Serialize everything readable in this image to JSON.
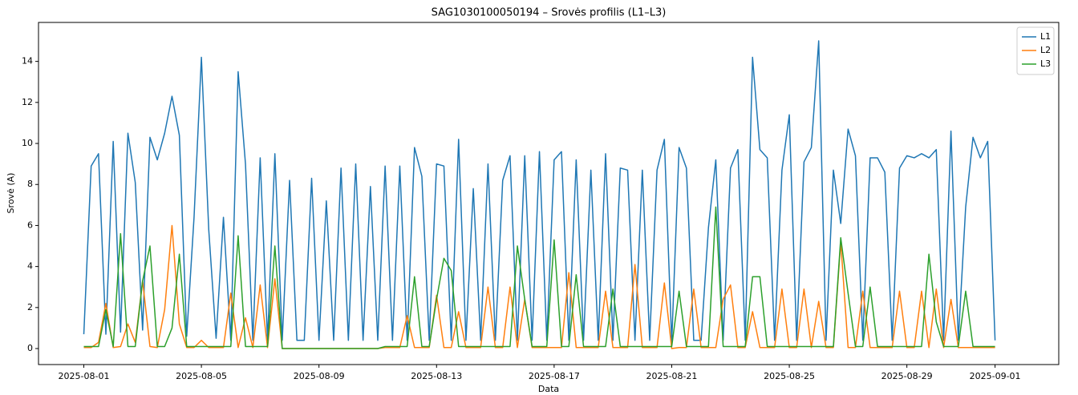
{
  "chart_data": {
    "type": "line",
    "title": "SAG1030100050194 – Srovės profilis (L1–L3)",
    "xlabel": "Data",
    "ylabel": "Srovė (A)",
    "x": [
      "2025-08-01 00:00",
      "2025-08-01 06:00",
      "2025-08-01 12:00",
      "2025-08-01 18:00",
      "2025-08-02 00:00",
      "2025-08-02 06:00",
      "2025-08-02 12:00",
      "2025-08-02 18:00",
      "2025-08-03 00:00",
      "2025-08-03 06:00",
      "2025-08-03 12:00",
      "2025-08-03 18:00",
      "2025-08-04 00:00",
      "2025-08-04 06:00",
      "2025-08-04 12:00",
      "2025-08-04 18:00",
      "2025-08-05 00:00",
      "2025-08-05 06:00",
      "2025-08-05 12:00",
      "2025-08-05 18:00",
      "2025-08-06 00:00",
      "2025-08-06 06:00",
      "2025-08-06 12:00",
      "2025-08-06 18:00",
      "2025-08-07 00:00",
      "2025-08-07 06:00",
      "2025-08-07 12:00",
      "2025-08-07 18:00",
      "2025-08-08 00:00",
      "2025-08-08 06:00",
      "2025-08-08 12:00",
      "2025-08-08 18:00",
      "2025-08-09 00:00",
      "2025-08-09 06:00",
      "2025-08-09 12:00",
      "2025-08-09 18:00",
      "2025-08-10 00:00",
      "2025-08-10 06:00",
      "2025-08-10 12:00",
      "2025-08-10 18:00",
      "2025-08-11 00:00",
      "2025-08-11 06:00",
      "2025-08-11 12:00",
      "2025-08-11 18:00",
      "2025-08-12 00:00",
      "2025-08-12 06:00",
      "2025-08-12 12:00",
      "2025-08-12 18:00",
      "2025-08-13 00:00",
      "2025-08-13 06:00",
      "2025-08-13 12:00",
      "2025-08-13 18:00",
      "2025-08-14 00:00",
      "2025-08-14 06:00",
      "2025-08-14 12:00",
      "2025-08-14 18:00",
      "2025-08-15 00:00",
      "2025-08-15 06:00",
      "2025-08-15 12:00",
      "2025-08-15 18:00",
      "2025-08-16 00:00",
      "2025-08-16 06:00",
      "2025-08-16 12:00",
      "2025-08-16 18:00",
      "2025-08-17 00:00",
      "2025-08-17 06:00",
      "2025-08-17 12:00",
      "2025-08-17 18:00",
      "2025-08-18 00:00",
      "2025-08-18 06:00",
      "2025-08-18 12:00",
      "2025-08-18 18:00",
      "2025-08-19 00:00",
      "2025-08-19 06:00",
      "2025-08-19 12:00",
      "2025-08-19 18:00",
      "2025-08-20 00:00",
      "2025-08-20 06:00",
      "2025-08-20 12:00",
      "2025-08-20 18:00",
      "2025-08-21 00:00",
      "2025-08-21 06:00",
      "2025-08-21 12:00",
      "2025-08-21 18:00",
      "2025-08-22 00:00",
      "2025-08-22 06:00",
      "2025-08-22 12:00",
      "2025-08-22 18:00",
      "2025-08-23 00:00",
      "2025-08-23 06:00",
      "2025-08-23 12:00",
      "2025-08-23 18:00",
      "2025-08-24 00:00",
      "2025-08-24 06:00",
      "2025-08-24 12:00",
      "2025-08-24 18:00",
      "2025-08-25 00:00",
      "2025-08-25 06:00",
      "2025-08-25 12:00",
      "2025-08-25 18:00",
      "2025-08-26 00:00",
      "2025-08-26 06:00",
      "2025-08-26 12:00",
      "2025-08-26 18:00",
      "2025-08-27 00:00",
      "2025-08-27 06:00",
      "2025-08-27 12:00",
      "2025-08-27 18:00",
      "2025-08-28 00:00",
      "2025-08-28 06:00",
      "2025-08-28 12:00",
      "2025-08-28 18:00",
      "2025-08-29 00:00",
      "2025-08-29 06:00",
      "2025-08-29 12:00",
      "2025-08-29 18:00",
      "2025-08-30 00:00",
      "2025-08-30 06:00",
      "2025-08-30 12:00",
      "2025-08-30 18:00",
      "2025-08-31 00:00",
      "2025-08-31 06:00",
      "2025-08-31 12:00",
      "2025-08-31 18:00",
      "2025-09-01 00:00"
    ],
    "series": [
      {
        "name": "L1",
        "color": "#1f77b4",
        "values": [
          0.7,
          8.9,
          9.5,
          0.7,
          10.1,
          0.8,
          10.5,
          8.1,
          0.9,
          10.3,
          9.2,
          10.5,
          12.3,
          10.4,
          0.6,
          6.4,
          14.2,
          5.8,
          0.5,
          6.4,
          0.4,
          13.5,
          9.0,
          0.4,
          9.3,
          0.4,
          9.5,
          0.4,
          8.2,
          0.4,
          0.4,
          8.3,
          0.4,
          7.2,
          0.4,
          8.8,
          0.4,
          9.0,
          0.4,
          7.9,
          0.4,
          8.9,
          0.4,
          8.9,
          0.4,
          9.8,
          8.4,
          0.4,
          9.0,
          8.9,
          0.4,
          10.2,
          0.4,
          7.8,
          0.4,
          9.0,
          0.4,
          8.2,
          9.4,
          0.4,
          9.4,
          0.4,
          9.6,
          0.4,
          9.2,
          9.6,
          0.4,
          9.2,
          0.4,
          8.7,
          0.4,
          9.5,
          0.4,
          8.8,
          8.7,
          0.4,
          8.7,
          0.4,
          8.7,
          10.2,
          0.3,
          9.8,
          8.8,
          0.4,
          0.4,
          5.9,
          9.2,
          0.4,
          8.8,
          9.7,
          0.4,
          14.2,
          9.7,
          9.3,
          0.4,
          8.7,
          11.4,
          0.4,
          9.1,
          9.8,
          15.0,
          0.4,
          8.7,
          6.1,
          10.7,
          9.4,
          0.4,
          9.3,
          9.3,
          8.6,
          0.4,
          8.8,
          9.4,
          9.3,
          9.5,
          9.3,
          9.7,
          0.4,
          10.6,
          0.4,
          6.9,
          10.3,
          9.3,
          10.1,
          0.4
        ]
      },
      {
        "name": "L2",
        "color": "#ff7f0e",
        "values": [
          0.05,
          0.05,
          0.3,
          2.2,
          0.05,
          0.1,
          1.2,
          0.3,
          3.3,
          0.1,
          0.05,
          1.9,
          6.0,
          1.2,
          0.05,
          0.05,
          0.4,
          0.05,
          0.05,
          0.05,
          2.7,
          0.05,
          1.5,
          0.05,
          3.1,
          0.05,
          3.4,
          0,
          0,
          0,
          0,
          0,
          0,
          0,
          0,
          0,
          0,
          0,
          0,
          0,
          0,
          0.05,
          0.05,
          0.05,
          1.6,
          0.05,
          0.05,
          0.05,
          2.6,
          0.05,
          0.05,
          1.8,
          0.05,
          0.05,
          0.05,
          3.0,
          0.05,
          0.05,
          3.0,
          0.05,
          2.4,
          0.05,
          0.05,
          0.05,
          0.05,
          0.05,
          3.7,
          0.05,
          0.05,
          0.05,
          0.05,
          2.8,
          0.05,
          0.05,
          0.05,
          4.1,
          0.05,
          0.05,
          0.05,
          3.2,
          0,
          0.05,
          0.05,
          2.9,
          0.05,
          0.05,
          0.05,
          2.4,
          3.1,
          0.05,
          0.05,
          1.8,
          0.05,
          0.05,
          0.05,
          2.9,
          0.05,
          0.05,
          2.9,
          0.05,
          2.3,
          0.05,
          0.05,
          5.2,
          0.05,
          0.05,
          2.8,
          0.05,
          0.05,
          0.05,
          0.05,
          2.8,
          0.05,
          0.05,
          2.8,
          0.05,
          2.9,
          0.05,
          2.4,
          0.05,
          0.05,
          0.05,
          0.05,
          0.05,
          0.05
        ]
      },
      {
        "name": "L3",
        "color": "#2ca02c",
        "values": [
          0.1,
          0.1,
          0.1,
          1.9,
          0.1,
          5.6,
          0.1,
          0.1,
          3.3,
          5.0,
          0.1,
          0.1,
          1.0,
          4.6,
          0.1,
          0.1,
          0.1,
          0.1,
          0.1,
          0.1,
          0.1,
          5.5,
          0.1,
          0.1,
          0.1,
          0.1,
          5.0,
          0,
          0,
          0,
          0,
          0,
          0,
          0,
          0,
          0,
          0,
          0,
          0,
          0,
          0,
          0.1,
          0.1,
          0.1,
          0.1,
          3.5,
          0.1,
          0.1,
          2.4,
          4.4,
          3.8,
          0.1,
          0.1,
          0.1,
          0.1,
          0.1,
          0.1,
          0.1,
          0.1,
          5.0,
          2.4,
          0.1,
          0.1,
          0.1,
          5.3,
          0.1,
          0.1,
          3.6,
          0.1,
          0.1,
          0.1,
          0.1,
          2.9,
          0.1,
          0.1,
          0.1,
          0.1,
          0.1,
          0.1,
          0.1,
          0.1,
          2.8,
          0.1,
          0.1,
          0.1,
          0.1,
          6.9,
          0.1,
          0.1,
          0.1,
          0.1,
          3.5,
          3.5,
          0.1,
          0.1,
          0.1,
          0.1,
          0.1,
          0.1,
          0.1,
          0.1,
          0.1,
          0.1,
          5.4,
          2.7,
          0.1,
          0.1,
          3.0,
          0.1,
          0.1,
          0.1,
          0.1,
          0.1,
          0.1,
          0.1,
          4.6,
          1.3,
          0.1,
          0.1,
          0.1,
          2.8,
          0.1,
          0.1,
          0.1,
          0.1
        ]
      }
    ],
    "xlim": [
      "2025-07-30 11:00",
      "2025-09-03 04:00"
    ],
    "xticks": [
      "2025-08-01",
      "2025-08-05",
      "2025-08-09",
      "2025-08-13",
      "2025-08-17",
      "2025-08-21",
      "2025-08-25",
      "2025-08-29",
      "2025-09-01"
    ],
    "ylim": [
      -0.78,
      15.9
    ],
    "yticks": [
      0,
      2,
      4,
      6,
      8,
      10,
      12,
      14
    ],
    "grid": false,
    "legend": "upper right"
  }
}
